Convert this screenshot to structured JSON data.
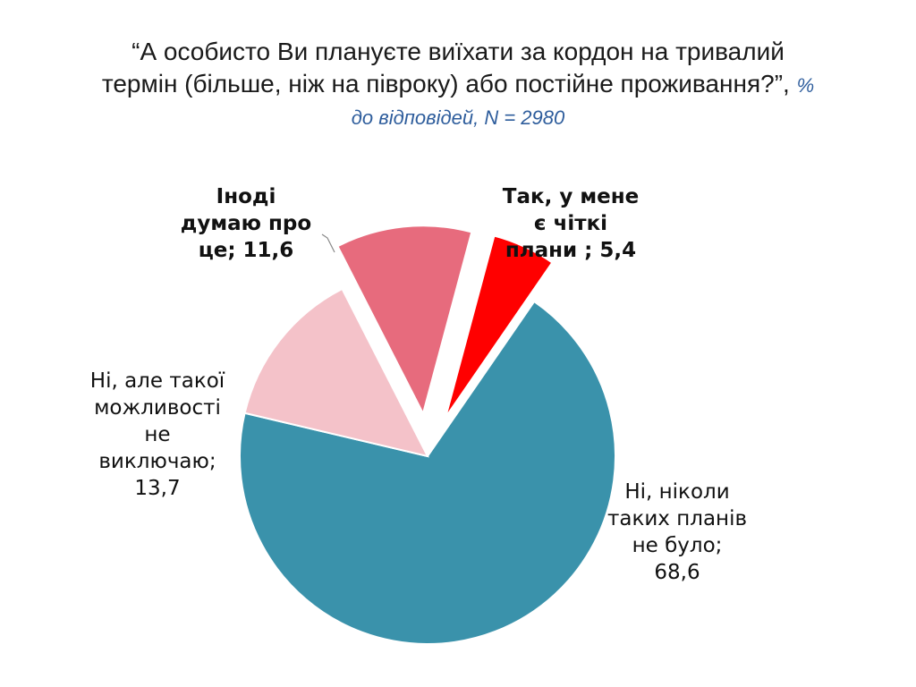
{
  "title": {
    "line1": "“А особисто Ви плануєте виїхати за кордон на тривалий",
    "line2": "термін (більше, ніж на півроку) або постійне проживання?”,",
    "note_part1": "%",
    "note_part2": "до відповідей, N = 2980"
  },
  "chart_data": {
    "type": "pie",
    "title": "“А особисто Ви плануєте виїхати за кордон на тривалий термін (більше, ніж на півроку) або постійне проживання?”",
    "unit_note": "% до відповідей, N = 2980",
    "slices": [
      {
        "name": "Так, у мене є чіткі плани",
        "value": 5.4,
        "color": "#ff0000",
        "exploded": true,
        "label_lines": [
          "Так, у мене",
          "є чіткі",
          "плани ; 5,4"
        ],
        "bold": true
      },
      {
        "name": "Ні, ніколи таких планів не було",
        "value": 68.6,
        "color": "#3a92ab",
        "exploded": false,
        "label_lines": [
          "Ні, ніколи",
          "таких планів",
          "не було;",
          "68,6"
        ],
        "bold": false
      },
      {
        "name": "Ні, але такої можливості не виключаю",
        "value": 13.7,
        "color": "#f4c2c9",
        "exploded": false,
        "label_lines": [
          "Ні, але такої",
          "можливості",
          "не",
          "виключаю;",
          "13,7"
        ],
        "bold": false
      },
      {
        "name": "Іноді думаю про це",
        "value": 11.6,
        "color": "#e76b7d",
        "exploded": true,
        "label_lines": [
          "Іноді",
          "думаю про",
          "це; 11,6"
        ],
        "bold": true
      }
    ]
  }
}
